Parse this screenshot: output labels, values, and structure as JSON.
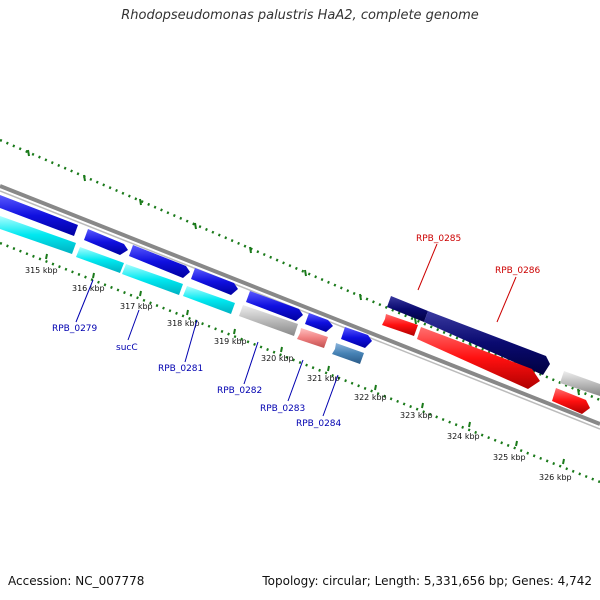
{
  "title": "Rhodopseudomonas palustris HaA2, complete genome",
  "footer": {
    "accession": "Accession: NC_007778",
    "info": "Topology: circular; Length: 5,331,656 bp; Genes: 4,742"
  },
  "colors": {
    "forward_gene": "#1010e0",
    "forward_dark": "#0a0a70",
    "reverse_cyan": "#00e8f0",
    "reverse_red": "#ff1010",
    "highlight_red": "#cc0000",
    "gray_gene": "#bbbbbb",
    "pink_gene": "#f08080",
    "steel_gene": "#4682b4",
    "label_blue": "#0000b0",
    "backbone": "#888888",
    "tick_green": "#1a7a1a"
  },
  "scale_labels": [
    {
      "text": "315 kbp"
    },
    {
      "text": "316 kbp"
    },
    {
      "text": "317 kbp"
    },
    {
      "text": "318 kbp"
    },
    {
      "text": "319 kbp"
    },
    {
      "text": "320 kbp"
    },
    {
      "text": "321 kbp"
    },
    {
      "text": "322 kbp"
    },
    {
      "text": "323 kbp"
    },
    {
      "text": "324 kbp"
    },
    {
      "text": "325 kbp"
    },
    {
      "text": "326 kbp"
    }
  ],
  "gene_labels": [
    {
      "text": "RPB_0279",
      "color": "#0000b0"
    },
    {
      "text": "sucC",
      "color": "#0000b0"
    },
    {
      "text": "RPB_0281",
      "color": "#0000b0"
    },
    {
      "text": "RPB_0282",
      "color": "#0000b0"
    },
    {
      "text": "RPB_0283",
      "color": "#0000b0"
    },
    {
      "text": "RPB_0284",
      "color": "#0000b0"
    },
    {
      "text": "RPB_0285",
      "color": "#cc0000"
    },
    {
      "text": "RPB_0286",
      "color": "#cc0000"
    }
  ]
}
